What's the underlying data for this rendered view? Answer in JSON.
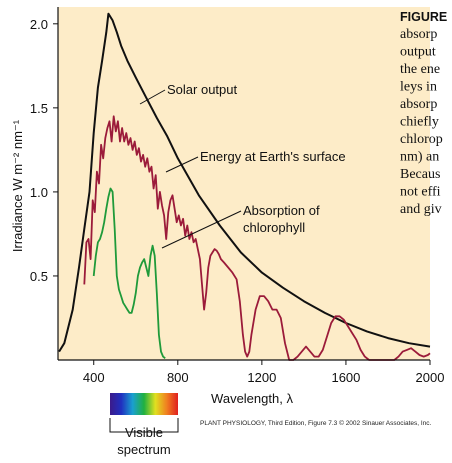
{
  "chart_data": {
    "type": "line",
    "ylabel": "Irradiance W m⁻² nm⁻¹",
    "xlabel": "Wavelength, λ",
    "xlim": [
      230,
      2000
    ],
    "ylim": [
      0,
      2.1
    ],
    "x_ticks": [
      {
        "label": "400",
        "value": 400
      },
      {
        "label": "800",
        "value": 800
      },
      {
        "label": "1200",
        "value": 1200
      },
      {
        "label": "1600",
        "value": 1600
      },
      {
        "label": "2000",
        "value": 2000
      }
    ],
    "y_ticks": [
      {
        "label": "0.5",
        "value": 0.5
      },
      {
        "label": "1.0",
        "value": 1.0
      },
      {
        "label": "1.5",
        "value": 1.5
      },
      {
        "label": "2.0",
        "value": 2.0
      }
    ],
    "series": [
      {
        "name": "Solar output",
        "color": "#111111",
        "x": [
          235,
          260,
          300,
          330,
          355,
          380,
          400,
          420,
          440,
          460,
          470,
          490,
          510,
          530,
          560,
          600,
          650,
          700,
          750,
          800,
          900,
          1000,
          1100,
          1200,
          1300,
          1400,
          1500,
          1600,
          1700,
          1800,
          1900,
          2000
        ],
        "y": [
          0.05,
          0.1,
          0.3,
          0.55,
          0.78,
          1.0,
          1.35,
          1.62,
          1.78,
          1.95,
          2.06,
          2.02,
          1.95,
          1.87,
          1.78,
          1.68,
          1.56,
          1.44,
          1.33,
          1.2,
          0.98,
          0.8,
          0.64,
          0.52,
          0.43,
          0.35,
          0.28,
          0.22,
          0.17,
          0.13,
          0.1,
          0.08
        ]
      },
      {
        "name": "Energy at Earth's surface",
        "color": "#9b1b3a",
        "x": [
          355,
          365,
          375,
          385,
          395,
          405,
          415,
          425,
          435,
          445,
          455,
          465,
          475,
          485,
          495,
          505,
          515,
          525,
          535,
          545,
          555,
          565,
          575,
          585,
          595,
          605,
          615,
          625,
          635,
          645,
          655,
          665,
          675,
          685,
          695,
          705,
          715,
          725,
          735,
          745,
          755,
          765,
          775,
          785,
          795,
          805,
          815,
          825,
          835,
          845,
          855,
          865,
          875,
          885,
          895,
          905,
          915,
          925,
          935,
          945,
          955,
          965,
          975,
          985,
          995,
          1005,
          1020,
          1040,
          1060,
          1080,
          1095,
          1110,
          1120,
          1130,
          1140,
          1150,
          1170,
          1190,
          1210,
          1230,
          1250,
          1270,
          1290,
          1310,
          1330,
          1350,
          1370,
          1390,
          1410,
          1430,
          1450,
          1470,
          1490,
          1510,
          1530,
          1550,
          1570,
          1590,
          1610,
          1630,
          1650,
          1670,
          1690,
          1710,
          1730,
          1750,
          1770,
          1790,
          1810,
          1830,
          1850,
          1870,
          1890,
          1910,
          1930,
          1950,
          1970,
          1990,
          2000
        ],
        "y": [
          0.45,
          0.7,
          0.72,
          0.6,
          0.95,
          0.88,
          1.12,
          1.05,
          1.28,
          1.2,
          1.32,
          1.38,
          1.42,
          1.3,
          1.45,
          1.36,
          1.42,
          1.3,
          1.38,
          1.3,
          1.35,
          1.28,
          1.32,
          1.25,
          1.3,
          1.22,
          1.26,
          1.18,
          1.22,
          1.15,
          1.2,
          1.12,
          1.15,
          1.02,
          1.1,
          0.9,
          1.0,
          0.92,
          0.86,
          0.72,
          0.88,
          0.95,
          0.98,
          0.9,
          0.82,
          0.86,
          0.8,
          0.84,
          0.74,
          0.8,
          0.72,
          0.76,
          0.7,
          0.72,
          0.66,
          0.6,
          0.45,
          0.3,
          0.4,
          0.55,
          0.62,
          0.64,
          0.66,
          0.65,
          0.63,
          0.6,
          0.58,
          0.55,
          0.52,
          0.48,
          0.35,
          0.15,
          0.05,
          0.02,
          0.05,
          0.15,
          0.3,
          0.38,
          0.38,
          0.35,
          0.3,
          0.3,
          0.25,
          0.1,
          0.0,
          0.0,
          0.02,
          0.05,
          0.08,
          0.05,
          0.02,
          0.02,
          0.06,
          0.14,
          0.22,
          0.26,
          0.26,
          0.24,
          0.2,
          0.16,
          0.12,
          0.06,
          0.02,
          0.0,
          0.0,
          0.0,
          0.0,
          0.0,
          0.0,
          0.0,
          0.02,
          0.05,
          0.06,
          0.07,
          0.05,
          0.03,
          0.02,
          0.03,
          0.04
        ]
      },
      {
        "name": "Absorption of chlorophyll",
        "color": "#1f9a3a",
        "x": [
          400,
          410,
          420,
          430,
          440,
          450,
          460,
          470,
          480,
          490,
          500,
          510,
          520,
          530,
          540,
          550,
          560,
          570,
          580,
          590,
          600,
          610,
          620,
          630,
          640,
          650,
          660,
          670,
          680,
          690,
          700,
          710,
          720,
          730,
          740
        ],
        "y": [
          0.5,
          0.62,
          0.7,
          0.72,
          0.76,
          0.82,
          0.9,
          0.97,
          1.02,
          1.0,
          0.78,
          0.5,
          0.42,
          0.38,
          0.34,
          0.32,
          0.3,
          0.28,
          0.28,
          0.33,
          0.4,
          0.5,
          0.55,
          0.58,
          0.6,
          0.55,
          0.5,
          0.62,
          0.68,
          0.62,
          0.4,
          0.15,
          0.05,
          0.02,
          0.01
        ]
      }
    ],
    "annotations": [
      "Solar output",
      "Energy at Earth's surface",
      "Absorption of chlorophyll"
    ]
  },
  "caption": {
    "head": "FIGURE",
    "lines": [
      "absorp",
      "output",
      "the ene",
      "leys in",
      "absorp",
      "chiefly",
      "chlorop",
      "nm) an",
      "Becaus",
      "not effi",
      "and giv"
    ]
  },
  "visible_spectrum": {
    "line1": "Visible",
    "line2": "spectrum",
    "colors": [
      "#3b1a8a",
      "#2030c0",
      "#1aa0d0",
      "#20b040",
      "#e0e020",
      "#f08020",
      "#e02020"
    ]
  },
  "credit": "PLANT PHYSIOLOGY, Third Edition, Figure 7.3  © 2002 Sinauer Associates, Inc.",
  "colors": {
    "plot_bg": "#fdecc8",
    "page_bg": "#ffffff"
  }
}
